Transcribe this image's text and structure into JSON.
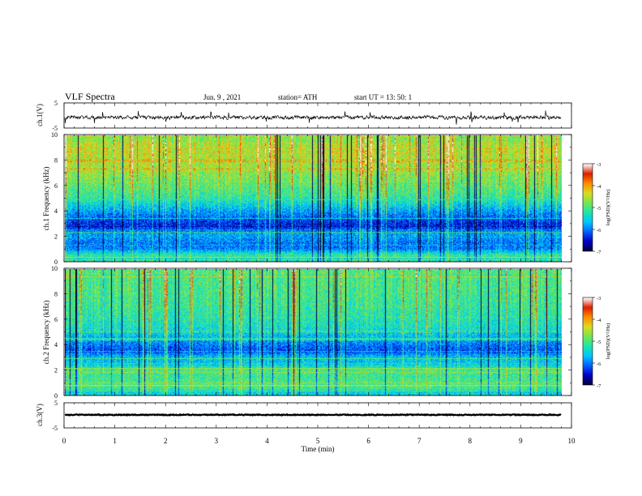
{
  "header": {
    "title": "VLF Spectra",
    "date": "Jun. 9 , 2021",
    "station": "station= ATH",
    "start": "start UT = 13: 50: 1"
  },
  "colors": {
    "background": "#ffffff",
    "axes": "#000000",
    "waveform": "#000000",
    "colormap": [
      "#00003c",
      "#0000c8",
      "#0064ff",
      "#00c8ff",
      "#1ee6aa",
      "#78e650",
      "#dcdc1e",
      "#ff8c00",
      "#dc1e00",
      "#ffffff"
    ]
  },
  "chart_data": [
    {
      "id": "ch1-waveform",
      "type": "line",
      "ylabel": "ch.1(V)",
      "yticks": [
        "5",
        "-5"
      ],
      "ylim": [
        -5,
        5
      ],
      "xlim": [
        0,
        10
      ],
      "series": [
        {
          "mean": -0.8,
          "noise_amp": 1.0,
          "spike_amp": 2.4,
          "x_end": 9.8
        }
      ]
    },
    {
      "id": "ch1-spectrogram",
      "type": "heatmap",
      "ylabel": "ch.1 Frequency (kHz)",
      "yticks": [
        "0",
        "2",
        "4",
        "6",
        "8",
        "10"
      ],
      "ylim": [
        0,
        10
      ],
      "xlim": [
        0,
        10
      ],
      "x_end": 9.8,
      "colorbar": {
        "label": "log(PSD)(V²/Hz)",
        "ticks": [
          "-3",
          "-4",
          "-5",
          "-6",
          "-7"
        ],
        "range": [
          -7,
          -3
        ]
      },
      "profile": [
        {
          "f": 0.0,
          "v": -5.4
        },
        {
          "f": 0.5,
          "v": -5.2
        },
        {
          "f": 1.0,
          "v": -6.0
        },
        {
          "f": 1.5,
          "v": -6.0
        },
        {
          "f": 2.0,
          "v": -5.8
        },
        {
          "f": 2.5,
          "v": -6.2
        },
        {
          "f": 3.0,
          "v": -6.4
        },
        {
          "f": 3.5,
          "v": -6.1
        },
        {
          "f": 4.0,
          "v": -5.8
        },
        {
          "f": 5.0,
          "v": -5.2
        },
        {
          "f": 6.0,
          "v": -4.9
        },
        {
          "f": 7.0,
          "v": -4.7
        },
        {
          "f": 8.0,
          "v": -4.5
        },
        {
          "f": 9.0,
          "v": -4.5
        },
        {
          "f": 10.0,
          "v": -4.6
        }
      ],
      "lines": [
        {
          "f": 2.3,
          "v": -5.0
        },
        {
          "f": 3.4,
          "v": -5.5
        },
        {
          "f": 4.9,
          "v": -5.2
        },
        {
          "f": 0.3,
          "v": -4.6
        }
      ]
    },
    {
      "id": "ch2-spectrogram",
      "type": "heatmap",
      "ylabel": "ch.2 Frequency (kHz)",
      "yticks": [
        "0",
        "2",
        "4",
        "6",
        "8",
        "10"
      ],
      "ylim": [
        0,
        10
      ],
      "xlim": [
        0,
        10
      ],
      "x_end": 9.8,
      "colorbar": {
        "label": "log(PSD)(V²/Hz)",
        "ticks": [
          "-3",
          "-4",
          "-5",
          "-6",
          "-7"
        ],
        "range": [
          -7,
          -3
        ]
      },
      "profile": [
        {
          "f": 0.0,
          "v": -5.5
        },
        {
          "f": 0.5,
          "v": -5.1
        },
        {
          "f": 1.0,
          "v": -5.0
        },
        {
          "f": 1.5,
          "v": -5.1
        },
        {
          "f": 2.0,
          "v": -5.0
        },
        {
          "f": 2.5,
          "v": -5.6
        },
        {
          "f": 3.0,
          "v": -5.6
        },
        {
          "f": 3.5,
          "v": -6.2
        },
        {
          "f": 4.0,
          "v": -6.0
        },
        {
          "f": 4.5,
          "v": -5.7
        },
        {
          "f": 5.5,
          "v": -5.3
        },
        {
          "f": 7.0,
          "v": -5.1
        },
        {
          "f": 8.5,
          "v": -5.0
        },
        {
          "f": 10.0,
          "v": -5.0
        }
      ],
      "lines": [
        {
          "f": 2.1,
          "v": -4.6
        },
        {
          "f": 2.9,
          "v": -5.0
        },
        {
          "f": 4.5,
          "v": -5.2
        },
        {
          "f": 0.8,
          "v": -4.4
        }
      ]
    },
    {
      "id": "ch3-waveform",
      "type": "line",
      "ylabel": "ch.3(V)",
      "yticks": [
        "5",
        "-5"
      ],
      "ylim": [
        -5,
        5
      ],
      "xlim": [
        0,
        10
      ],
      "series": [
        {
          "mean": 0.2,
          "noise_amp": 0.25,
          "spike_amp": 0,
          "x_end": 9.8
        }
      ]
    }
  ],
  "xaxis": {
    "label": "Time (min)",
    "ticks": [
      "0",
      "1",
      "2",
      "3",
      "4",
      "5",
      "6",
      "7",
      "8",
      "9",
      "10"
    ]
  }
}
